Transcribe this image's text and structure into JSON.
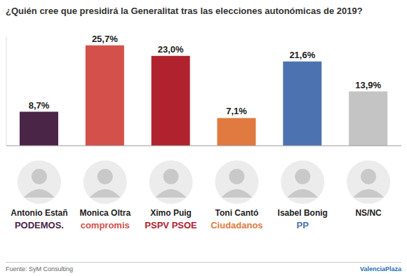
{
  "chart_data": {
    "type": "bar",
    "title": "¿Quién cree que presidirá la Generalitat tras las elecciones autonómicas de 2019?",
    "categories": [
      "Antonio Estañ",
      "Monica Oltra",
      "Ximo Puig",
      "Toni Cantó",
      "Isabel Bonig",
      "NS/NC"
    ],
    "parties": [
      "PODEMOS.",
      "compromis",
      "PSPV PSOE",
      "Ciudadanos",
      "PP",
      null
    ],
    "values": [
      8.7,
      25.7,
      23.0,
      7.1,
      21.6,
      13.9
    ],
    "value_labels": [
      "8,7%",
      "25,7%",
      "23,0%",
      "7,1%",
      "21,6%",
      "13,9%"
    ],
    "colors": [
      "#4a2548",
      "#d4504a",
      "#b0222e",
      "#e07a40",
      "#4d72b0",
      "#c4c4c4"
    ],
    "ylim": [
      0,
      28
    ],
    "data_labels": true,
    "tick_labels": "x",
    "grid": false,
    "source": "Fuente: SyM Consulting",
    "publisher": "ValenciaPlaza"
  }
}
